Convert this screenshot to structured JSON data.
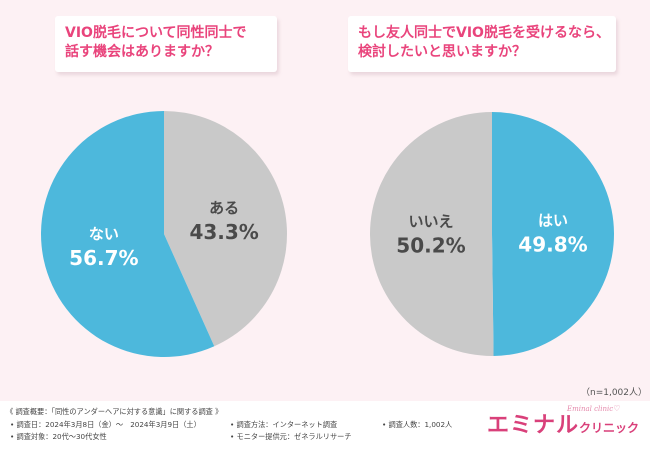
{
  "questions": {
    "q1_line1": "VIO脱毛について同性同士で",
    "q1_line2": "話す機会はありますか？",
    "q2_line1": "もし友人同士でVIO脱毛を受けるなら、",
    "q2_line2": "検討したいと思いますか？"
  },
  "chart_data": [
    {
      "type": "pie",
      "title": "VIO脱毛について同性同士で話す機会はありますか？",
      "slices": [
        {
          "label": "ある",
          "value": 43.3,
          "value_text": "43.3%",
          "color": "#c9c9c9"
        },
        {
          "label": "ない",
          "value": 56.7,
          "value_text": "56.7%",
          "color": "#4db8dc"
        }
      ]
    },
    {
      "type": "pie",
      "title": "もし友人同士でVIO脱毛を受けるなら、検討したいと思いますか？",
      "slices": [
        {
          "label": "はい",
          "value": 49.8,
          "value_text": "49.8%",
          "color": "#4db8dc"
        },
        {
          "label": "いいえ",
          "value": 50.2,
          "value_text": "50.2%",
          "color": "#c9c9c9"
        }
      ]
    }
  ],
  "sample_note": "（n=1,002人）",
  "survey": {
    "heading": "《 調査概要：「同性のアンダーヘアに対する意識」に関する調査 》",
    "date": "• 調査日：2024年3月8日（金）〜　2024年3月9日（土）",
    "method": "• 調査方法：インターネット調査",
    "count": "• 調査人数：1,002人",
    "target": "• 調査対象：20代〜30代女性",
    "provider": "• モニター提供元：ゼネラルリサーチ"
  },
  "logo": {
    "main": "エミナル",
    "sub": "クリニック",
    "en": "Eminal clinic",
    "heart": "♡"
  }
}
